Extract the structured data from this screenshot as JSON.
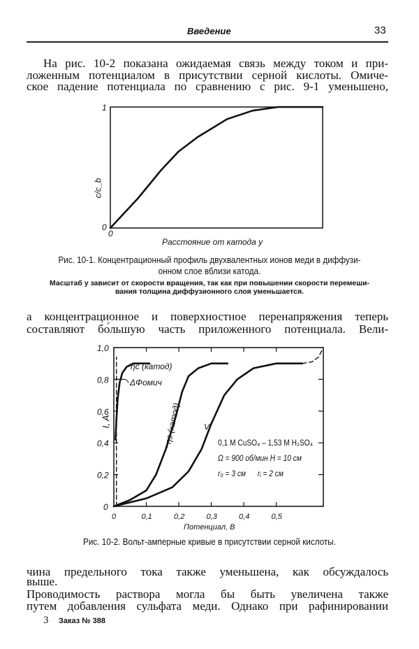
{
  "header": {
    "title": "Введение",
    "page_number": "33"
  },
  "paragraph1": [
    "На рис. 10-2 показана ожидаемая связь между током и при-",
    "ложенным потенциалом в присутствии серной кислоты. Омиче-",
    "ское падение потенциала по сравнению с рис. 9-1 уменьшено,"
  ],
  "figure1": {
    "caption": [
      "Рис. 10-1. Концентрационный профиль двухвалентных ионов меди в диффузи-",
      "онном слое вблизи катода."
    ],
    "note": [
      "Масштаб y зависит от скорости вращения, так как при повышении скорости перемеши-",
      "вания толщина диффузионного слоя уменьшается."
    ]
  },
  "paragraph2": [
    "а концентрационное и поверхностное перенапряжения теперь",
    "составляют бо́льшую часть приложенного потенциала. Вели-"
  ],
  "figure2": {
    "caption": "Рис. 10-2. Вольт-амперные кривые в присутствии серной кислоты.",
    "annotation": [
      "0,1 M CuSO₄ – 1,53 M H₂SO₄",
      "Ω = 900 об/мин  H = 10 см",
      "r₀ = 3 см      rᵢ = 2 см"
    ]
  },
  "paragraph3": [
    "чина предельного тока также уменьшена, как обсуждалось",
    "выше.",
    "Проводимость раствора могла бы быть увеличена также",
    "путем добавления сульфата меди. Однако при рафинировании"
  ],
  "footer": {
    "signature": "3",
    "order": "Заказ № 388"
  },
  "chart_data": [
    {
      "type": "line",
      "ylabel": "c/c_b",
      "xlabel": "Расстояние от катода y",
      "yticks": [
        "0",
        "1"
      ],
      "xticks": [
        "0"
      ],
      "xlim": [
        0,
        1
      ],
      "ylim": [
        0,
        1
      ],
      "grid": false,
      "series": [
        {
          "x": [
            0,
            0.13,
            0.24,
            0.32,
            0.41,
            0.55,
            0.67,
            0.79,
            1
          ],
          "y": [
            0,
            0.245,
            0.48,
            0.63,
            0.75,
            0.9,
            0.97,
            1,
            1
          ]
        }
      ]
    },
    {
      "type": "line",
      "ylabel": "I, A",
      "xlabel": "Потенциал, В",
      "xticks": [
        "0",
        "0,1",
        "0,2",
        "0,3",
        "0,4",
        "0,5"
      ],
      "yticks": [
        "0",
        "0,2",
        "0,4",
        "0,6",
        "0,8",
        "1,0"
      ],
      "xlim": [
        0,
        0.645
      ],
      "ylim": [
        0,
        1.0
      ],
      "grid": false,
      "series": [
        {
          "name": "−ηc (катод)",
          "x": [
            0.005,
            0.008,
            0.012,
            0.018,
            0.026,
            0.04,
            0.06,
            0.08,
            0.11
          ],
          "y": [
            0.42,
            0.55,
            0.68,
            0.78,
            0.84,
            0.88,
            0.9,
            0.9,
            0.9
          ]
        },
        {
          "name": "ΔΦомич",
          "style": "dashed",
          "x": [
            0.008,
            0.008
          ],
          "y": [
            0,
            0.94
          ]
        },
        {
          "name": "−ηs (катод)",
          "x": [
            0,
            0.05,
            0.1,
            0.13,
            0.16,
            0.19,
            0.21,
            0.23,
            0.26,
            0.3,
            0.35
          ],
          "y": [
            0,
            0.04,
            0.1,
            0.2,
            0.36,
            0.56,
            0.72,
            0.82,
            0.87,
            0.9,
            0.9
          ]
        },
        {
          "name": "V",
          "x": [
            0,
            0.1,
            0.18,
            0.23,
            0.27,
            0.3,
            0.34,
            0.38,
            0.43,
            0.5,
            0.58
          ],
          "y": [
            0,
            0.05,
            0.12,
            0.22,
            0.36,
            0.52,
            0.7,
            0.8,
            0.87,
            0.9,
            0.9
          ]
        },
        {
          "style": "dashed",
          "x": [
            0.58,
            0.61,
            0.63,
            0.645
          ],
          "y": [
            0.9,
            0.91,
            0.94,
            1.0
          ]
        }
      ]
    }
  ]
}
